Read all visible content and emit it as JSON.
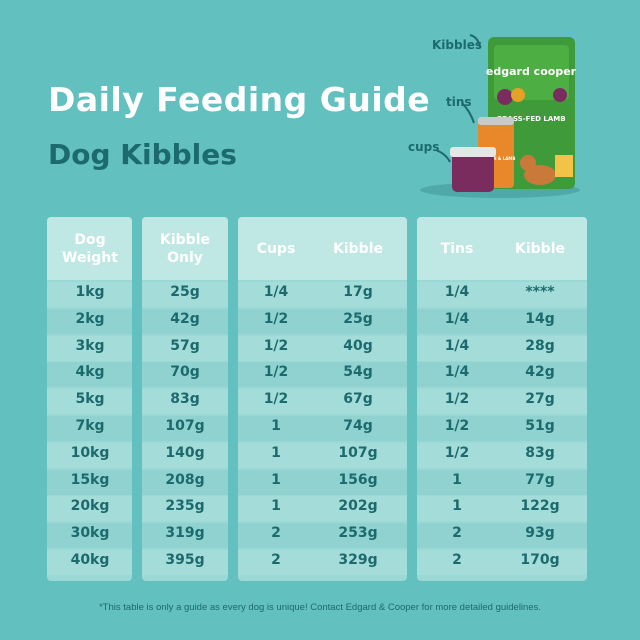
{
  "header": {
    "title": "Daily Feeding Guide",
    "subtitle": "Dog Kibbles"
  },
  "product": {
    "labels": [
      "Kibbles",
      "tins",
      "cups"
    ],
    "brand": "edgard cooper",
    "flavor": "GRASS-FED LAMB",
    "can_flavor": "CHICKEN & LAMB"
  },
  "table": {
    "headers": [
      "Dog Weight",
      "Kibble Only",
      "Cups",
      "Kibble",
      "Tins",
      "Kibble"
    ],
    "rows": [
      [
        "1kg",
        "25g",
        "1/4",
        "17g",
        "1/4",
        "****"
      ],
      [
        "2kg",
        "42g",
        "1/2",
        "25g",
        "1/4",
        "14g"
      ],
      [
        "3kg",
        "57g",
        "1/2",
        "40g",
        "1/4",
        "28g"
      ],
      [
        "4kg",
        "70g",
        "1/2",
        "54g",
        "1/4",
        "42g"
      ],
      [
        "5kg",
        "83g",
        "1/2",
        "67g",
        "1/2",
        "27g"
      ],
      [
        "7kg",
        "107g",
        "1",
        "74g",
        "1/2",
        "51g"
      ],
      [
        "10kg",
        "140g",
        "1",
        "107g",
        "1/2",
        "83g"
      ],
      [
        "15kg",
        "208g",
        "1",
        "156g",
        "1",
        "77g"
      ],
      [
        "20kg",
        "235g",
        "1",
        "202g",
        "1",
        "122g"
      ],
      [
        "30kg",
        "319g",
        "2",
        "253g",
        "2",
        "93g"
      ],
      [
        "40kg",
        "395g",
        "2",
        "329g",
        "2",
        "170g"
      ]
    ]
  },
  "footnote": "*This table is only a guide as every dog is unique! Contact Edgard & Cooper for more detailed guidelines."
}
